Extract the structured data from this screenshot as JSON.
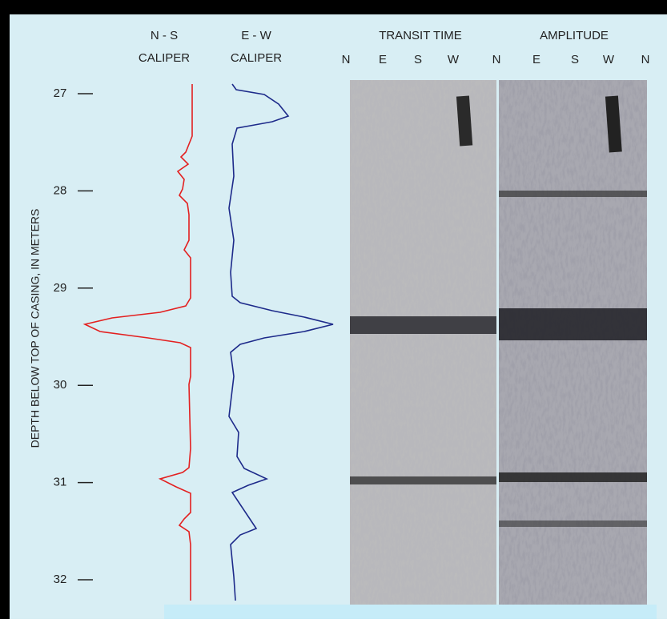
{
  "columns": [
    {
      "label": [
        "N - S",
        "CALIPER"
      ]
    },
    {
      "label": [
        "E - W",
        "CALIPER"
      ]
    },
    {
      "label": [
        "TRANSIT TIME"
      ]
    },
    {
      "label": [
        "AMPLITUDE"
      ]
    }
  ],
  "directions": [
    "N",
    "E",
    "S",
    "W",
    "N",
    "E",
    "S",
    "W",
    "N"
  ],
  "depth_axis": {
    "label": "DEPTH BELOW TOP OF CASING, IN METERS",
    "ticks": [
      27,
      28,
      29,
      30,
      31,
      32
    ]
  }
}
